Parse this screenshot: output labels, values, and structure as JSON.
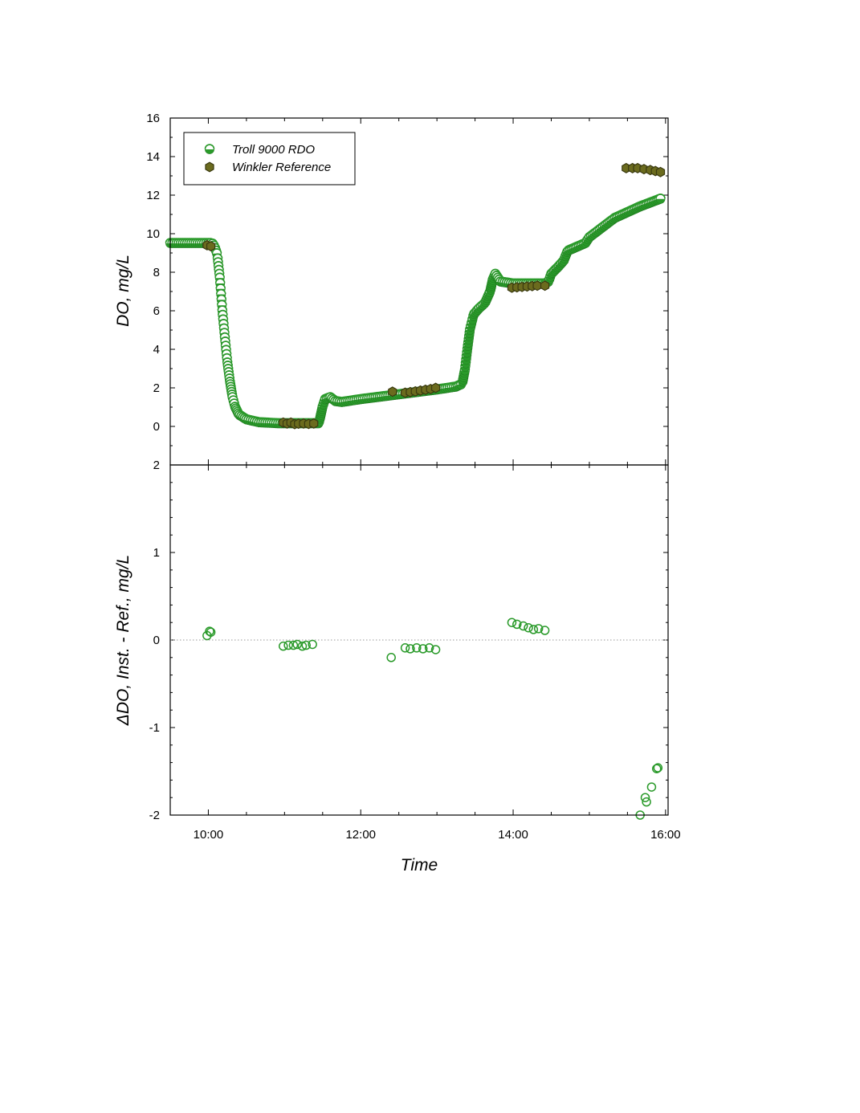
{
  "chart_data": [
    {
      "type": "scatter",
      "panel": "top",
      "title": "",
      "xlabel": "",
      "ylabel": "DO, mg/L",
      "x_unit": "hours",
      "xlim": [
        "09:30",
        "16:02"
      ],
      "ylim": [
        -2,
        16
      ],
      "y_ticks": [
        "16",
        "14",
        "12",
        "10",
        "8",
        "6",
        "4",
        "2",
        "0"
      ],
      "legend": {
        "placement": "top-left",
        "entries": [
          "Troll 9000 RDO",
          "Winkler Reference"
        ]
      },
      "colors": {
        "troll": "#2a9a2a",
        "troll_edge": "#1a6e1a",
        "winkler": "#6b6b1e",
        "winkler_edge": "#3a3a10"
      },
      "series": [
        {
          "name": "Troll 9000 RDO",
          "marker": "half-filled circle",
          "profile": [
            [
              "09:30",
              9.5
            ],
            [
              "09:45",
              9.5
            ],
            [
              "10:03",
              9.5
            ],
            [
              "10:05",
              9.3
            ],
            [
              "10:07",
              8.9
            ],
            [
              "10:09",
              7.7
            ],
            [
              "10:11",
              6.0
            ],
            [
              "10:13",
              4.6
            ],
            [
              "10:15",
              3.3
            ],
            [
              "10:17",
              2.3
            ],
            [
              "10:19",
              1.5
            ],
            [
              "10:21",
              1.0
            ],
            [
              "10:24",
              0.6
            ],
            [
              "10:30",
              0.35
            ],
            [
              "10:40",
              0.2
            ],
            [
              "10:55",
              0.15
            ],
            [
              "11:27",
              0.15
            ],
            [
              "11:28",
              0.4
            ],
            [
              "11:30",
              1.0
            ],
            [
              "11:32",
              1.4
            ],
            [
              "11:36",
              1.5
            ],
            [
              "11:40",
              1.3
            ],
            [
              "11:45",
              1.25
            ],
            [
              "12:00",
              1.4
            ],
            [
              "12:30",
              1.65
            ],
            [
              "13:00",
              1.9
            ],
            [
              "13:15",
              2.05
            ],
            [
              "13:20",
              2.2
            ],
            [
              "13:22",
              2.9
            ],
            [
              "13:24",
              4.0
            ],
            [
              "13:26",
              5.0
            ],
            [
              "13:29",
              5.8
            ],
            [
              "13:33",
              6.1
            ],
            [
              "13:38",
              6.4
            ],
            [
              "13:42",
              7.0
            ],
            [
              "13:44",
              7.6
            ],
            [
              "13:46",
              7.9
            ],
            [
              "13:50",
              7.5
            ],
            [
              "14:00",
              7.4
            ],
            [
              "14:25",
              7.4
            ],
            [
              "14:28",
              7.5
            ],
            [
              "14:30",
              7.9
            ],
            [
              "14:36",
              8.3
            ],
            [
              "14:40",
              8.6
            ],
            [
              "14:43",
              9.1
            ],
            [
              "14:50",
              9.3
            ],
            [
              "14:57",
              9.5
            ],
            [
              "15:00",
              9.8
            ],
            [
              "15:10",
              10.3
            ],
            [
              "15:20",
              10.8
            ],
            [
              "15:30",
              11.1
            ],
            [
              "15:40",
              11.4
            ],
            [
              "15:50",
              11.65
            ],
            [
              "15:56",
              11.8
            ]
          ]
        },
        {
          "name": "Winkler Reference",
          "marker": "hexagon",
          "points": [
            [
              "09:59",
              9.4
            ],
            [
              "10:02",
              9.35
            ],
            [
              "10:59",
              0.2
            ],
            [
              "11:02",
              0.15
            ],
            [
              "11:05",
              0.2
            ],
            [
              "11:08",
              0.12
            ],
            [
              "11:11",
              0.14
            ],
            [
              "11:15",
              0.15
            ],
            [
              "11:19",
              0.13
            ],
            [
              "11:23",
              0.15
            ],
            [
              "12:25",
              1.8
            ],
            [
              "12:35",
              1.75
            ],
            [
              "12:39",
              1.78
            ],
            [
              "12:43",
              1.82
            ],
            [
              "12:47",
              1.86
            ],
            [
              "12:51",
              1.9
            ],
            [
              "12:55",
              1.94
            ],
            [
              "12:59",
              2.0
            ],
            [
              "13:59",
              7.2
            ],
            [
              "14:03",
              7.22
            ],
            [
              "14:07",
              7.24
            ],
            [
              "14:11",
              7.26
            ],
            [
              "14:15",
              7.28
            ],
            [
              "14:19",
              7.3
            ],
            [
              "14:25",
              7.3
            ],
            [
              "15:29",
              13.4
            ],
            [
              "15:34",
              13.4
            ],
            [
              "15:38",
              13.4
            ],
            [
              "15:43",
              13.35
            ],
            [
              "15:48",
              13.3
            ],
            [
              "15:52",
              13.25
            ],
            [
              "15:56",
              13.2
            ]
          ]
        }
      ]
    },
    {
      "type": "scatter",
      "panel": "bottom",
      "title": "",
      "xlabel": "Time",
      "ylabel": "ΔDO, Inst. - Ref., mg/L",
      "x_unit": "hours",
      "xlim": [
        "09:30",
        "16:02"
      ],
      "ylim": [
        -2,
        2
      ],
      "y_ticks": [
        "2",
        "1",
        "0",
        "-1",
        "-2"
      ],
      "x_ticks": [
        "10:00",
        "12:00",
        "14:00",
        "16:00"
      ],
      "reference_line": 0,
      "colors": {
        "points": "#2a9a2a",
        "zero_line": "#888888"
      },
      "series": [
        {
          "marker": "open circle",
          "points": [
            [
              "09:59",
              0.05
            ],
            [
              "10:01",
              0.1
            ],
            [
              "10:02",
              0.09
            ],
            [
              "10:59",
              -0.07
            ],
            [
              "11:03",
              -0.06
            ],
            [
              "11:07",
              -0.06
            ],
            [
              "11:10",
              -0.05
            ],
            [
              "11:14",
              -0.07
            ],
            [
              "11:17",
              -0.06
            ],
            [
              "11:22",
              -0.05
            ],
            [
              "12:24",
              -0.2
            ],
            [
              "12:35",
              -0.09
            ],
            [
              "12:39",
              -0.1
            ],
            [
              "12:44",
              -0.09
            ],
            [
              "12:49",
              -0.1
            ],
            [
              "12:54",
              -0.09
            ],
            [
              "12:59",
              -0.11
            ],
            [
              "13:59",
              0.2
            ],
            [
              "14:03",
              0.18
            ],
            [
              "14:08",
              0.16
            ],
            [
              "14:12",
              0.14
            ],
            [
              "14:16",
              0.12
            ],
            [
              "14:20",
              0.13
            ],
            [
              "14:25",
              0.11
            ],
            [
              "15:40",
              -2.0
            ],
            [
              "15:44",
              -1.8
            ],
            [
              "15:45",
              -1.85
            ],
            [
              "15:49",
              -1.68
            ],
            [
              "15:53",
              -1.47
            ],
            [
              "15:54",
              -1.46
            ]
          ]
        }
      ]
    }
  ]
}
